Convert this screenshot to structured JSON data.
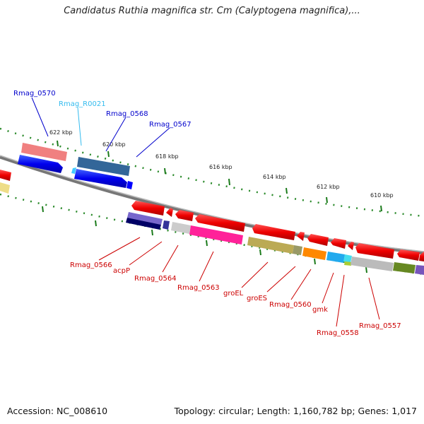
{
  "title": "Candidatus Ruthia magnifica str. Cm (Calyptogena magnifica),...",
  "footer": {
    "accession": "Accession: NC_008610",
    "summary": "Topology: circular; Length: 1,160,782 bp; Genes: 1,017"
  },
  "ticks": [
    "622 kbp",
    "620 kbp",
    "618 kbp",
    "616 kbp",
    "614 kbp",
    "612 kbp",
    "610 kbp"
  ],
  "upper_labels": [
    {
      "text": "Rmag_0570",
      "color": "#0000cc"
    },
    {
      "text": "Rmag_R0021",
      "color": "#33bbee"
    },
    {
      "text": "Rmag_0568",
      "color": "#0000cc"
    },
    {
      "text": "Rmag_0567",
      "color": "#0000cc"
    }
  ],
  "lower_labels": [
    {
      "text": "Rmag_0566",
      "color": "#cc0000"
    },
    {
      "text": "acpP",
      "color": "#cc0000"
    },
    {
      "text": "Rmag_0564",
      "color": "#cc0000"
    },
    {
      "text": "Rmag_0563",
      "color": "#cc0000"
    },
    {
      "text": "groEL",
      "color": "#cc0000"
    },
    {
      "text": "groES",
      "color": "#cc0000"
    },
    {
      "text": "Rmag_0560",
      "color": "#cc0000"
    },
    {
      "text": "gmk",
      "color": "#cc0000"
    },
    {
      "text": "Rmag_0558",
      "color": "#cc0000"
    },
    {
      "text": "Rmag_0557",
      "color": "#cc0000"
    }
  ]
}
